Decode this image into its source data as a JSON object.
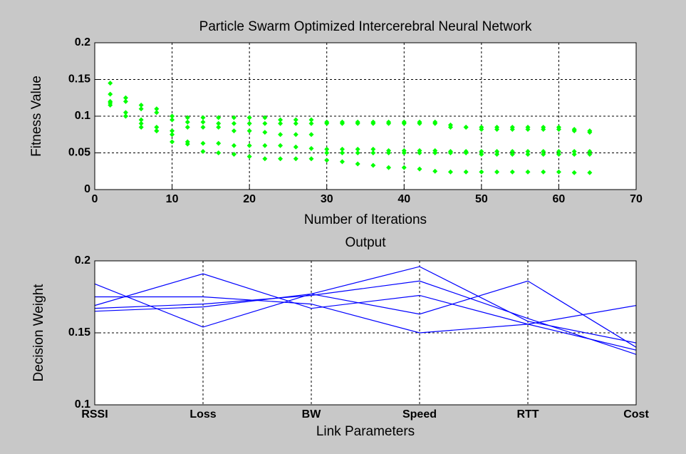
{
  "chart_data": [
    {
      "type": "scatter",
      "title": "Particle Swarm Optimized Intercerebral Neural Network",
      "xlabel": "Number of Iterations",
      "ylabel": "Fitness Value",
      "x": [
        2,
        4,
        6,
        8,
        10,
        12,
        14,
        16,
        18,
        20,
        22,
        24,
        26,
        28,
        30,
        32,
        34,
        36,
        38,
        40,
        42,
        44,
        46,
        48,
        50,
        52,
        54,
        56,
        58,
        60,
        62,
        64
      ],
      "series": [
        {
          "color": "#00ff00",
          "values": [
            0.145,
            0.125,
            0.115,
            0.11,
            0.1,
            0.098,
            0.098,
            0.098,
            0.098,
            0.098,
            0.098,
            0.095,
            0.095,
            0.095,
            0.092,
            0.092,
            0.092,
            0.092,
            0.092,
            0.092,
            0.092,
            0.092,
            0.088,
            0.085,
            0.085,
            0.085,
            0.085,
            0.085,
            0.085,
            0.085,
            0.082,
            0.08
          ]
        },
        {
          "color": "#00ff00",
          "values": [
            0.13,
            0.12,
            0.11,
            0.105,
            0.095,
            0.092,
            0.092,
            0.09,
            0.09,
            0.09,
            0.09,
            0.09,
            0.09,
            0.09,
            0.09,
            0.09,
            0.09,
            0.09,
            0.09,
            0.09,
            0.09,
            0.09,
            0.085,
            0.085,
            0.082,
            0.082,
            0.082,
            0.082,
            0.082,
            0.082,
            0.08,
            0.078
          ]
        },
        {
          "color": "#00ff00",
          "values": [
            0.115,
            0.1,
            0.095,
            0.085,
            0.08,
            0.085,
            0.085,
            0.085,
            0.08,
            0.08,
            0.078,
            0.075,
            0.075,
            0.075,
            0.055,
            0.055,
            0.055,
            0.055,
            0.053,
            0.053,
            0.053,
            0.053,
            0.052,
            0.052,
            0.052,
            0.052,
            0.052,
            0.052,
            0.052,
            0.052,
            0.052,
            0.052
          ]
        },
        {
          "color": "#00ff00",
          "values": [
            0.118,
            0.105,
            0.09,
            0.08,
            0.065,
            0.062,
            0.063,
            0.063,
            0.06,
            0.06,
            0.06,
            0.06,
            0.058,
            0.056,
            0.05,
            0.05,
            0.05,
            0.05,
            0.05,
            0.05,
            0.05,
            0.05,
            0.05,
            0.05,
            0.048,
            0.048,
            0.048,
            0.048,
            0.048,
            0.048,
            0.048,
            0.048
          ]
        },
        {
          "color": "#00ff00",
          "values": [
            0.12,
            0.1,
            0.085,
            0.08,
            0.075,
            0.065,
            0.052,
            0.05,
            0.048,
            0.045,
            0.042,
            0.042,
            0.042,
            0.042,
            0.04,
            0.038,
            0.035,
            0.033,
            0.03,
            0.03,
            0.028,
            0.025,
            0.024,
            0.024,
            0.024,
            0.024,
            0.024,
            0.024,
            0.024,
            0.024,
            0.023,
            0.023
          ]
        }
      ],
      "xlim": [
        0,
        70
      ],
      "xticks": [
        0,
        10,
        20,
        30,
        40,
        50,
        60,
        70
      ],
      "ylim": [
        0,
        0.2
      ],
      "yticks": [
        0,
        0.05,
        0.1,
        0.15,
        0.2
      ],
      "grid": true
    },
    {
      "type": "line",
      "title": "Output",
      "xlabel": "Link Parameters",
      "ylabel": "Decision Weight",
      "categories": [
        "RSSI",
        "Loss",
        "BW",
        "Speed",
        "RTT",
        "Cost"
      ],
      "series": [
        {
          "color": "#0000ff",
          "values": [
            0.184,
            0.154,
            0.177,
            0.196,
            0.158,
            0.143
          ]
        },
        {
          "color": "#0000ff",
          "values": [
            0.169,
            0.191,
            0.167,
            0.176,
            0.156,
            0.138
          ]
        },
        {
          "color": "#0000ff",
          "values": [
            0.175,
            0.175,
            0.17,
            0.15,
            0.156,
            0.169
          ]
        },
        {
          "color": "#0000ff",
          "values": [
            0.167,
            0.17,
            0.176,
            0.186,
            0.16,
            0.135
          ]
        },
        {
          "color": "#0000ff",
          "values": [
            0.165,
            0.168,
            0.177,
            0.163,
            0.186,
            0.14
          ]
        }
      ],
      "ylim": [
        0.1,
        0.2
      ],
      "yticks": [
        0.1,
        0.15,
        0.2
      ],
      "grid": true
    }
  ]
}
